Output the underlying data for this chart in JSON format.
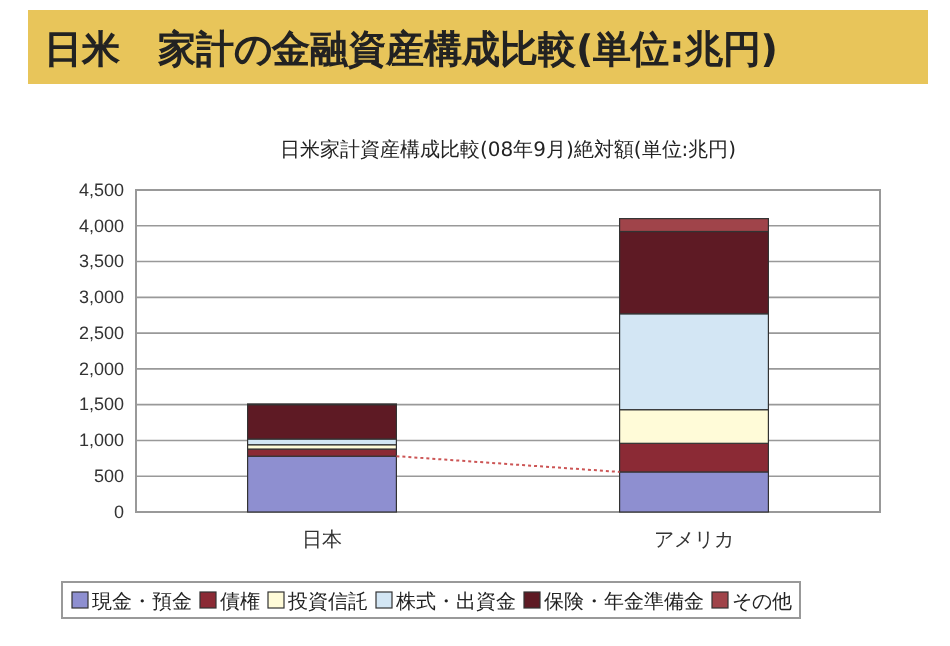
{
  "chart_data": {
    "type": "bar",
    "title": "日米　家計の金融資産構成比較(単位:兆円)",
    "subtitle": "日米家計資産構成比較(08年9月)絶対額(単位:兆円)",
    "categories": [
      "日本",
      "アメリカ"
    ],
    "stacked": true,
    "series": [
      {
        "name": "現金・預金",
        "color": "#8e8fd0",
        "values": [
          780,
          560
        ]
      },
      {
        "name": "債権",
        "color": "#8b2a35",
        "values": [
          100,
          400
        ]
      },
      {
        "name": "投資信託",
        "color": "#fffbd8",
        "values": [
          60,
          470
        ]
      },
      {
        "name": "株式・出資金",
        "color": "#d3e6f4",
        "values": [
          80,
          1340
        ]
      },
      {
        "name": "保険・年金準備金",
        "color": "#5e1a24",
        "values": [
          480,
          1150
        ]
      },
      {
        "name": "その他",
        "color": "#a0444a",
        "values": [
          10,
          180
        ]
      }
    ],
    "ylim": [
      0,
      4500
    ],
    "yticks": [
      {
        "value": 0,
        "label": "0"
      },
      {
        "value": 500,
        "label": "500"
      },
      {
        "value": 1000,
        "label": "1,000"
      },
      {
        "value": 1500,
        "label": "1,500"
      },
      {
        "value": 2000,
        "label": "2,000"
      },
      {
        "value": 2500,
        "label": "2,500"
      },
      {
        "value": 3000,
        "label": "3,000"
      },
      {
        "value": 3500,
        "label": "3,500"
      },
      {
        "value": 4000,
        "label": "4,000"
      },
      {
        "value": 4500,
        "label": "4,500"
      }
    ],
    "grid": "y",
    "legend": "bottom"
  }
}
